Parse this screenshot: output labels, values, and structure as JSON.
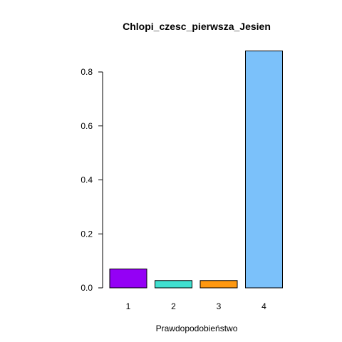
{
  "chart_data": {
    "type": "bar",
    "title": "Chlopi_czesc_pierwsza_Jesien",
    "xlabel": "Prawdopodobieństwo",
    "ylabel": "",
    "categories": [
      "1",
      "2",
      "3",
      "4"
    ],
    "values": [
      0.07,
      0.027,
      0.027,
      0.878
    ],
    "colors": [
      "#9400F5",
      "#40E0D0",
      "#FF9810",
      "#7BC1FA"
    ],
    "ylim": [
      0,
      0.8
    ],
    "yticks": [
      "0.0",
      "0.2",
      "0.4",
      "0.6",
      "0.8"
    ],
    "grid": false,
    "legend": "none"
  }
}
